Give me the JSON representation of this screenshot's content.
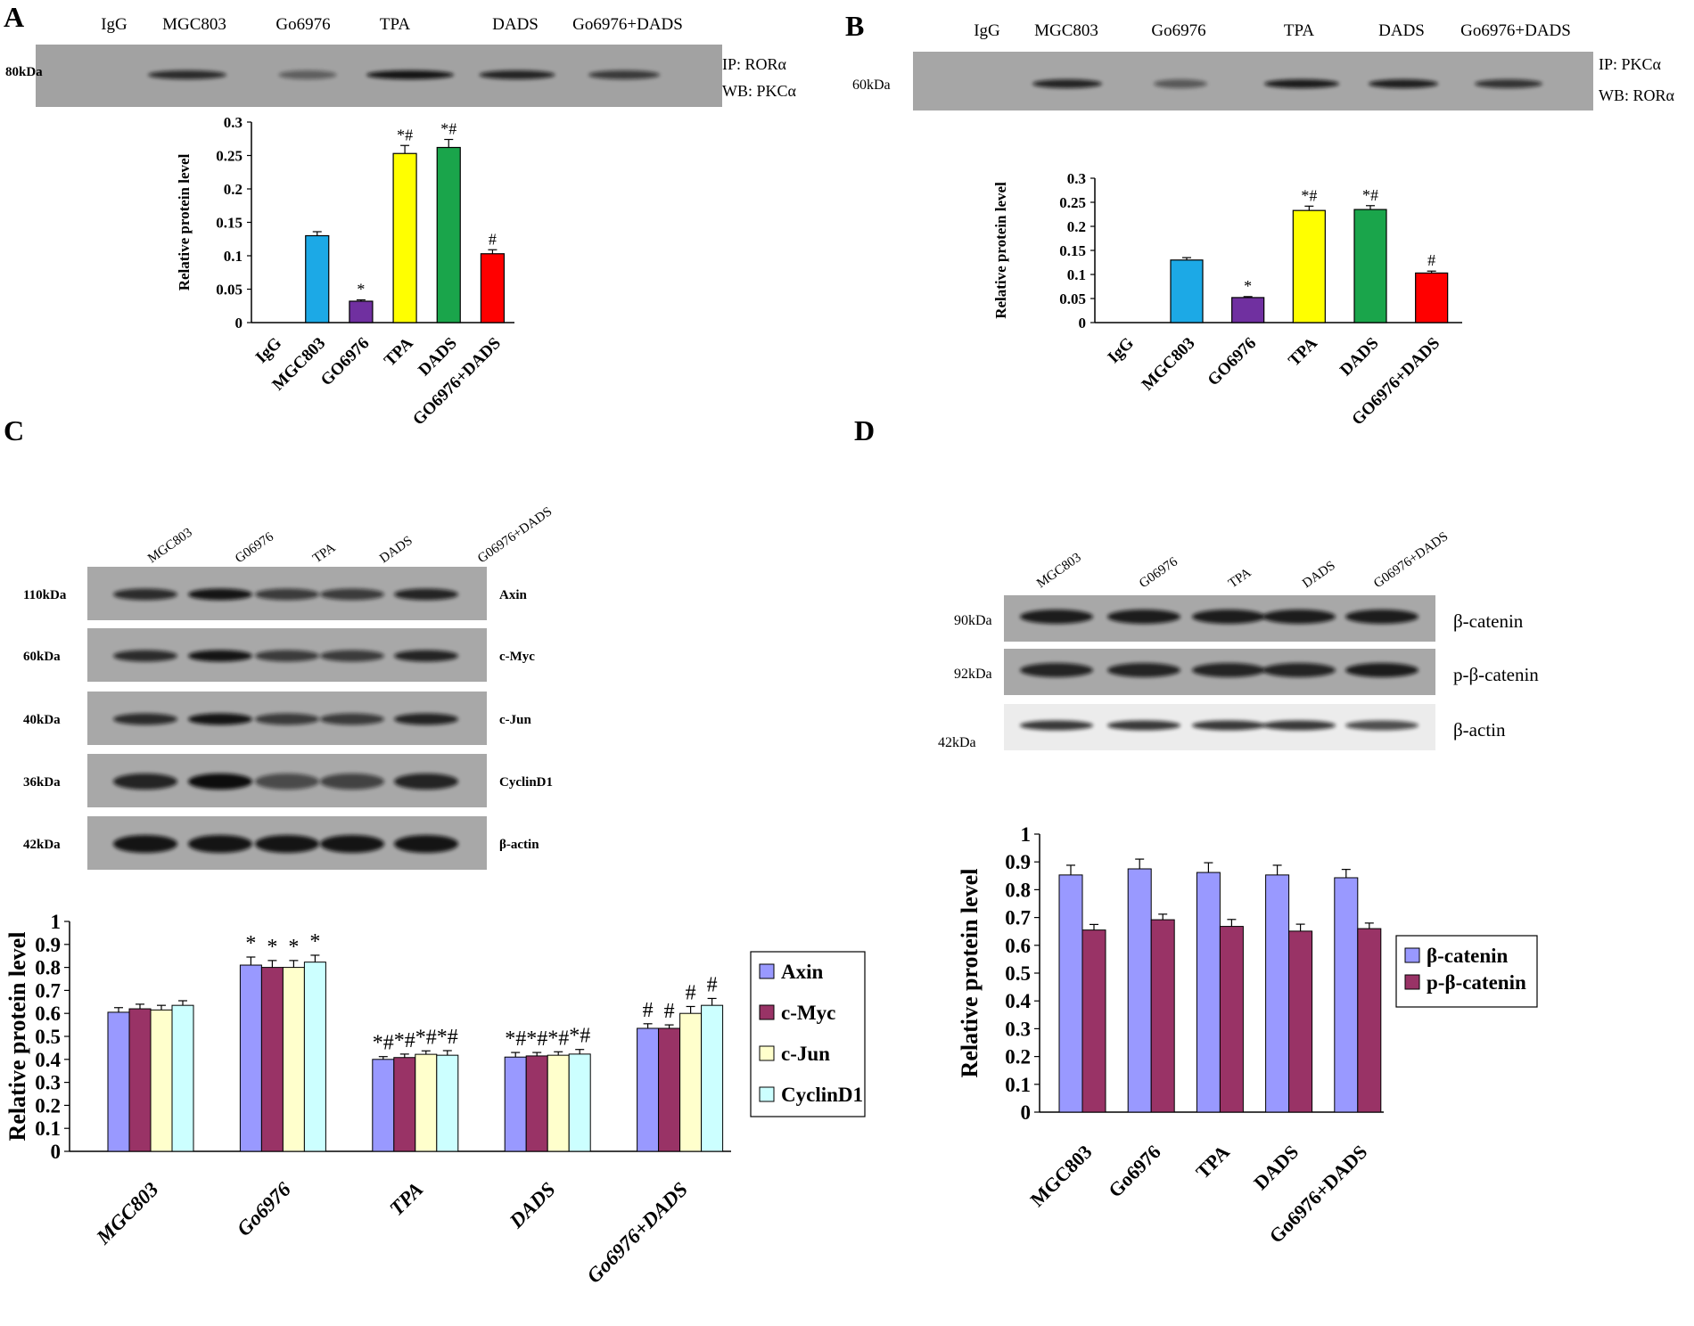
{
  "panels": {
    "A": {
      "label": "A",
      "blot": {
        "lanes": [
          "IgG",
          "MGC803",
          "Go6976",
          "TPA",
          "DADS",
          "Go6976+DADS"
        ],
        "marker": "80kDa",
        "ip": "IP: RORα",
        "wb": "WB: PKCα"
      }
    },
    "B": {
      "label": "B",
      "blot": {
        "lanes": [
          "IgG",
          "MGC803",
          "Go6976",
          "TPA",
          "DADS",
          "Go6976+DADS"
        ],
        "marker": "60kDa",
        "ip": "IP: PKCα",
        "wb": "WB: RORα"
      }
    },
    "C": {
      "label": "C",
      "blot": {
        "lanes": [
          "MGC803",
          "G06976",
          "TPA",
          "DADS",
          "G06976+DADS"
        ],
        "rows": [
          {
            "protein": "Axin",
            "marker": "110kDa"
          },
          {
            "protein": "c-Myc",
            "marker": "60kDa"
          },
          {
            "protein": "c-Jun",
            "marker": "40kDa"
          },
          {
            "protein": "CyclinD1",
            "marker": "36kDa"
          },
          {
            "protein": "β-actin",
            "marker": "42kDa"
          }
        ]
      }
    },
    "D": {
      "label": "D",
      "blot": {
        "lanes": [
          "MGC803",
          "G06976",
          "TPA",
          "DADS",
          "G06976+DADS"
        ],
        "rows": [
          {
            "protein": "β-catenin",
            "marker": "90kDa"
          },
          {
            "protein": "p-β-catenin",
            "marker": "92kDa"
          },
          {
            "protein": "β-actin",
            "marker": "42kDa"
          }
        ]
      }
    }
  },
  "chart_data": [
    {
      "id": "A",
      "type": "bar",
      "title": "",
      "xlabel": "",
      "ylabel": "Relative protein level",
      "ylim": [
        0,
        0.3
      ],
      "yticks": [
        0,
        0.05,
        0.1,
        0.15,
        0.2,
        0.25,
        0.3
      ],
      "categories": [
        "IgG",
        "MGC803",
        "GO6976",
        "TPA",
        "DADS",
        "GO6976+DADS"
      ],
      "values": [
        0,
        0.13,
        0.032,
        0.253,
        0.262,
        0.103
      ],
      "errors": [
        0,
        0.006,
        0.002,
        0.012,
        0.012,
        0.006
      ],
      "colors": [
        "#ffffff",
        "#1ca9e6",
        "#7030a0",
        "#ffff00",
        "#1aa54b",
        "#ff0000"
      ],
      "annotations": [
        "",
        "",
        "*",
        "*#",
        "*#",
        "#"
      ]
    },
    {
      "id": "B",
      "type": "bar",
      "title": "",
      "xlabel": "",
      "ylabel": "Relative protein level",
      "ylim": [
        0,
        0.3
      ],
      "yticks": [
        0,
        0.05,
        0.1,
        0.15,
        0.2,
        0.25,
        0.3
      ],
      "categories": [
        "IgG",
        "MGC803",
        "GO6976",
        "TPA",
        "DADS",
        "GO6976+DADS"
      ],
      "values": [
        0,
        0.13,
        0.052,
        0.233,
        0.235,
        0.103
      ],
      "errors": [
        0,
        0.005,
        0.002,
        0.009,
        0.008,
        0.004
      ],
      "colors": [
        "#ffffff",
        "#1ca9e6",
        "#7030a0",
        "#ffff00",
        "#1aa54b",
        "#ff0000"
      ],
      "annotations": [
        "",
        "",
        "*",
        "*#",
        "*#",
        "#"
      ]
    },
    {
      "id": "C",
      "type": "bar",
      "title": "",
      "xlabel": "",
      "ylabel": "Relative protein level",
      "ylim": [
        0,
        1
      ],
      "yticks": [
        0,
        0.1,
        0.2,
        0.3,
        0.4,
        0.5,
        0.6,
        0.7,
        0.8,
        0.9,
        1
      ],
      "categories": [
        "MGC803",
        "Go6976",
        "TPA",
        "DADS",
        "Go6976+DADS"
      ],
      "series": [
        {
          "name": "Axin",
          "color": "#9999ff",
          "values": [
            0.605,
            0.81,
            0.4,
            0.41,
            0.535
          ],
          "errors": [
            0.02,
            0.035,
            0.012,
            0.02,
            0.02
          ],
          "annotations": [
            "",
            "*",
            "*#",
            "*#",
            "#"
          ]
        },
        {
          "name": "c-Myc",
          "color": "#993366",
          "values": [
            0.62,
            0.8,
            0.408,
            0.415,
            0.535
          ],
          "errors": [
            0.02,
            0.03,
            0.015,
            0.015,
            0.015
          ],
          "annotations": [
            "",
            "*",
            "*#",
            "*#",
            "#"
          ]
        },
        {
          "name": "c-Jun",
          "color": "#ffffcc",
          "values": [
            0.615,
            0.8,
            0.422,
            0.418,
            0.6
          ],
          "errors": [
            0.02,
            0.03,
            0.015,
            0.015,
            0.03
          ],
          "annotations": [
            "",
            "*",
            "*#",
            "*#",
            "#"
          ]
        },
        {
          "name": "CyclinD1",
          "color": "#ccffff",
          "values": [
            0.635,
            0.823,
            0.418,
            0.423,
            0.635
          ],
          "errors": [
            0.02,
            0.03,
            0.02,
            0.02,
            0.03
          ],
          "annotations": [
            "",
            "*",
            "*#",
            "*#",
            "#"
          ]
        }
      ],
      "legend": "right"
    },
    {
      "id": "D",
      "type": "bar",
      "title": "",
      "xlabel": "",
      "ylabel": "Relative protein level",
      "ylim": [
        0,
        1
      ],
      "yticks": [
        0,
        0.1,
        0.2,
        0.3,
        0.4,
        0.5,
        0.6,
        0.7,
        0.8,
        0.9,
        1
      ],
      "categories": [
        "MGC803",
        "Go6976",
        "TPA",
        "DADS",
        "Go6976+DADS"
      ],
      "series": [
        {
          "name": "β-catenin",
          "color": "#9999ff",
          "values": [
            0.853,
            0.875,
            0.862,
            0.853,
            0.843
          ],
          "errors": [
            0.035,
            0.035,
            0.035,
            0.035,
            0.03
          ]
        },
        {
          "name": "p-β-catenin",
          "color": "#993366",
          "values": [
            0.655,
            0.692,
            0.668,
            0.651,
            0.66
          ],
          "errors": [
            0.02,
            0.02,
            0.025,
            0.025,
            0.02
          ]
        }
      ],
      "legend": "right"
    }
  ]
}
